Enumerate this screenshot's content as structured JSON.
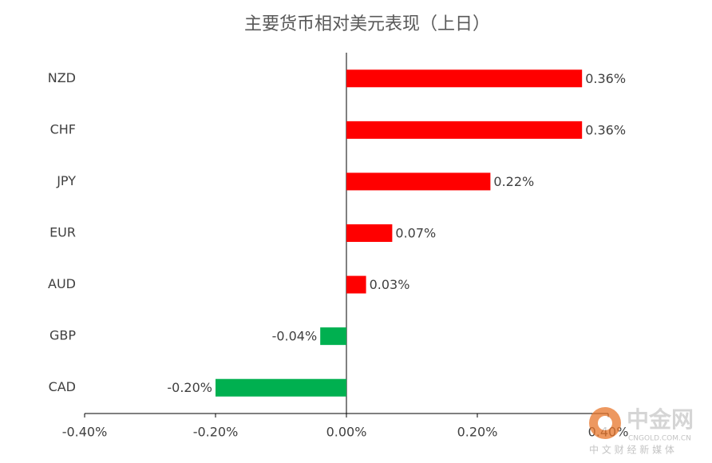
{
  "chart_data": {
    "type": "bar",
    "orientation": "horizontal",
    "title": "主要货币相对美元表现（上日）",
    "categories": [
      "NZD",
      "CHF",
      "JPY",
      "EUR",
      "AUD",
      "GBP",
      "CAD"
    ],
    "values": [
      0.36,
      0.36,
      0.22,
      0.07,
      0.03,
      -0.04,
      -0.2
    ],
    "value_labels": [
      "0.36%",
      "0.36%",
      "0.22%",
      "0.07%",
      "0.03%",
      "-0.04%",
      "-0.20%"
    ],
    "positive_color": "#ff0000",
    "negative_color": "#00b050",
    "xlim": [
      -0.4,
      0.4
    ],
    "xticks": [
      {
        "value": -0.4,
        "label": "-0.40%"
      },
      {
        "value": -0.2,
        "label": "-0.20%"
      },
      {
        "value": 0,
        "label": "0.00%"
      },
      {
        "value": 0.2,
        "label": "0.20%"
      },
      {
        "value": 0.4,
        "label": "0.40%"
      }
    ],
    "grid": false
  },
  "watermark": {
    "name": "中金网",
    "site": "CNGOLD.COM.CN",
    "slogan": "中 文 财 经 新 媒 体"
  }
}
